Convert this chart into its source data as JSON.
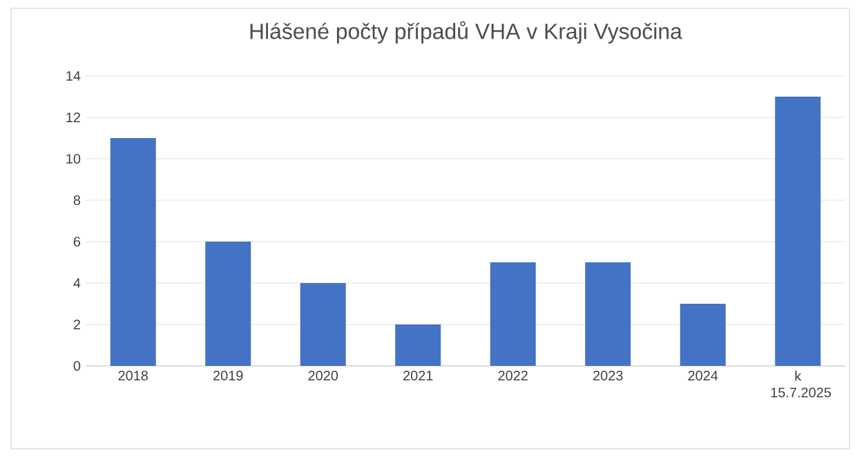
{
  "chart_data": {
    "type": "bar",
    "title": "Hlášené počty případů VHA v Kraji Vysočina",
    "categories": [
      "2018",
      "2019",
      "2020",
      "2021",
      "2022",
      "2023",
      "2024",
      "k 15.7.2025"
    ],
    "values": [
      11,
      6,
      4,
      2,
      5,
      5,
      3,
      13
    ],
    "color": "#4472c4",
    "ylim": [
      0,
      14
    ],
    "yticks": [
      0,
      2,
      4,
      6,
      8,
      10,
      12,
      14
    ],
    "grid": "y"
  }
}
